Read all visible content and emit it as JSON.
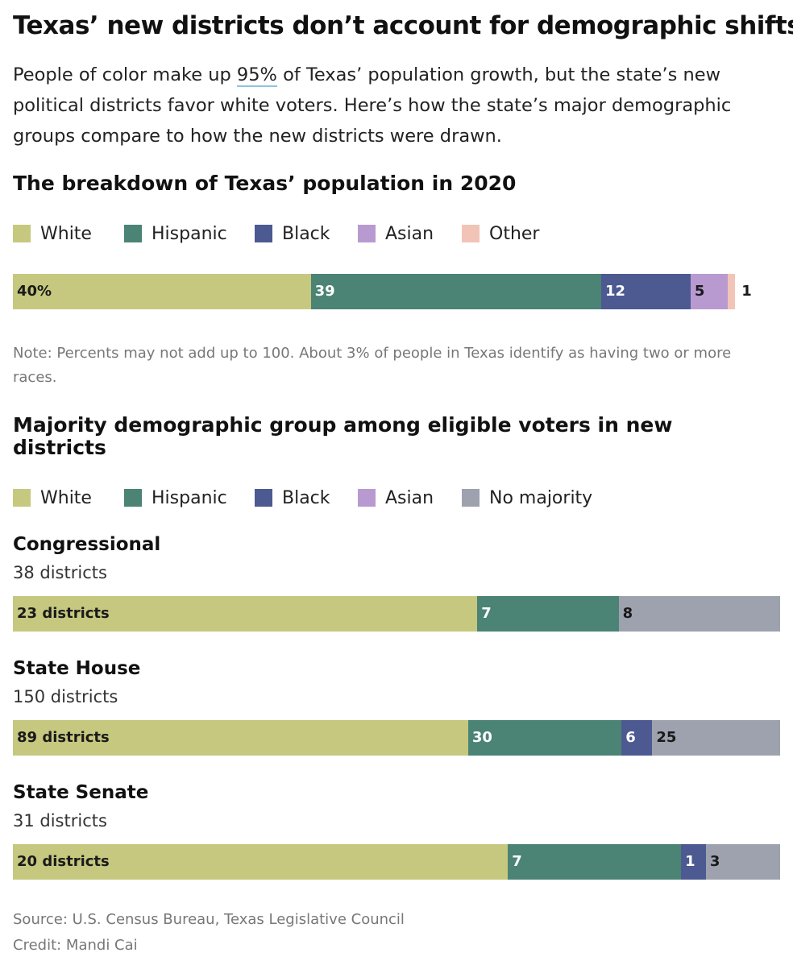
{
  "headline": "Texas’ new districts don’t account for demographic shifts",
  "dek": {
    "before": "People of color make up ",
    "highlight": "95%",
    "after": " of Texas’ population growth, but the state’s new political districts favor white voters. Here’s how the state’s major demographic groups compare to how the new districts were drawn."
  },
  "colors": {
    "White": "#c6c87f",
    "Hispanic": "#4b8375",
    "Black": "#4c5a91",
    "Asian": "#b89ad1",
    "Other": "#f1c4b7",
    "No majority": "#9ea2ae"
  },
  "population": {
    "title": "The breakdown of Texas’ population in 2020",
    "legend": [
      "White",
      "Hispanic",
      "Black",
      "Asian",
      "Other"
    ],
    "note": "Note: Percents may not add up to 100. About 3% of people in Texas identify as having two or more races."
  },
  "districts": {
    "title": "Majority demographic group among eligible voters in new districts",
    "legend": [
      "White",
      "Hispanic",
      "Black",
      "Asian",
      "No majority"
    ],
    "sections": [
      {
        "title": "Congressional",
        "subtitle": "38 districts"
      },
      {
        "title": "State House",
        "subtitle": "150 districts"
      },
      {
        "title": "State Senate",
        "subtitle": "31 districts"
      }
    ]
  },
  "footer": {
    "source": "Source: U.S. Census Bureau, Texas Legislative Council",
    "credit": "Credit: Mandi Cai"
  },
  "chart_data": [
    {
      "type": "bar",
      "orientation": "horizontal-stacked",
      "title": "The breakdown of Texas’ population in 2020",
      "categories": [
        "White",
        "Hispanic",
        "Black",
        "Asian",
        "Other"
      ],
      "values": [
        40,
        39,
        12,
        5,
        1
      ],
      "labels": [
        "40%",
        "39",
        "12",
        "5",
        "1"
      ],
      "unit": "%"
    },
    {
      "type": "bar",
      "orientation": "horizontal-stacked",
      "title": "Majority demographic group among eligible voters in new districts",
      "categories": [
        "White",
        "Hispanic",
        "Black",
        "Asian",
        "No majority"
      ],
      "series": [
        {
          "name": "Congressional",
          "total": 38,
          "values": [
            23,
            7,
            0,
            0,
            8
          ],
          "labels": [
            "23 districts",
            "7",
            "",
            "",
            "8"
          ]
        },
        {
          "name": "State House",
          "total": 150,
          "values": [
            89,
            30,
            6,
            0,
            25
          ],
          "labels": [
            "89 districts",
            "30",
            "6",
            "",
            "25"
          ]
        },
        {
          "name": "State Senate",
          "total": 31,
          "values": [
            20,
            7,
            1,
            0,
            3
          ],
          "labels": [
            "20 districts",
            "7",
            "1",
            "",
            "3"
          ]
        }
      ]
    }
  ]
}
